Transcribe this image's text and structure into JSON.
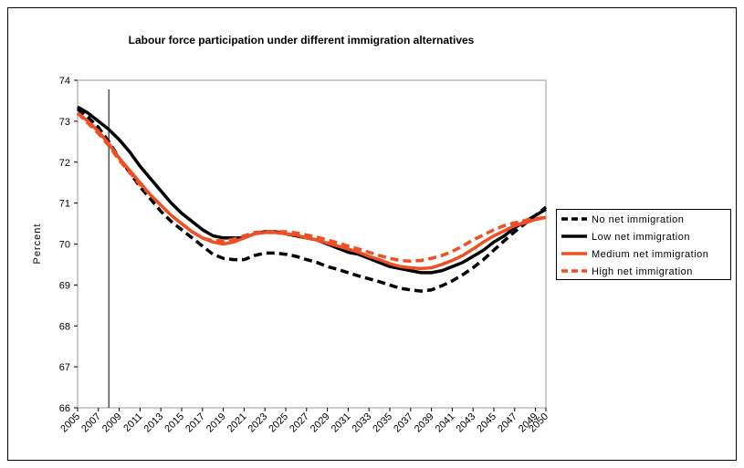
{
  "chart_data": {
    "type": "line",
    "title": "Labour force participation under different immigration alternatives",
    "y_label": "Percent",
    "x": [
      2005,
      2006,
      2007,
      2008,
      2009,
      2010,
      2011,
      2012,
      2013,
      2014,
      2015,
      2016,
      2017,
      2018,
      2019,
      2020,
      2021,
      2022,
      2023,
      2024,
      2025,
      2026,
      2027,
      2028,
      2029,
      2030,
      2031,
      2032,
      2033,
      2034,
      2035,
      2036,
      2037,
      2038,
      2039,
      2040,
      2041,
      2042,
      2043,
      2044,
      2045,
      2046,
      2047,
      2048,
      2049,
      2050
    ],
    "xlim": [
      2005,
      2050
    ],
    "xticks": [
      2005,
      2007,
      2009,
      2011,
      2013,
      2015,
      2017,
      2019,
      2021,
      2023,
      2025,
      2027,
      2029,
      2031,
      2033,
      2035,
      2037,
      2039,
      2041,
      2043,
      2045,
      2047,
      2049,
      2050
    ],
    "ylim": [
      66,
      74
    ],
    "yticks": [
      66,
      67,
      68,
      69,
      70,
      71,
      72,
      73,
      74
    ],
    "vline": 2008,
    "series": [
      {
        "name": "No net immigration",
        "color": "#000000",
        "dash": true,
        "values": [
          73.3,
          73.1,
          72.85,
          72.5,
          72.1,
          71.75,
          71.4,
          71.1,
          70.8,
          70.55,
          70.35,
          70.15,
          69.95,
          69.75,
          69.65,
          69.62,
          69.62,
          69.72,
          69.78,
          69.78,
          69.75,
          69.7,
          69.62,
          69.55,
          69.45,
          69.38,
          69.3,
          69.22,
          69.15,
          69.08,
          69.0,
          68.92,
          68.88,
          68.85,
          68.88,
          68.98,
          69.1,
          69.25,
          69.42,
          69.62,
          69.85,
          70.08,
          70.3,
          70.5,
          70.7,
          70.9
        ]
      },
      {
        "name": "Low net immigration",
        "color": "#000000",
        "dash": false,
        "values": [
          73.35,
          73.2,
          73.0,
          72.8,
          72.55,
          72.25,
          71.9,
          71.6,
          71.3,
          71.0,
          70.75,
          70.55,
          70.35,
          70.2,
          70.15,
          70.15,
          70.15,
          70.25,
          70.3,
          70.3,
          70.25,
          70.2,
          70.15,
          70.1,
          70.0,
          69.9,
          69.8,
          69.75,
          69.65,
          69.55,
          69.45,
          69.4,
          69.35,
          69.3,
          69.3,
          69.35,
          69.45,
          69.55,
          69.7,
          69.85,
          70.05,
          70.2,
          70.4,
          70.55,
          70.7,
          70.85
        ]
      },
      {
        "name": "Medium net immigration",
        "color": "#f04e23",
        "dash": false,
        "values": [
          73.2,
          73.0,
          72.75,
          72.45,
          72.1,
          71.8,
          71.5,
          71.2,
          70.95,
          70.7,
          70.5,
          70.3,
          70.15,
          70.05,
          70.0,
          70.05,
          70.15,
          70.25,
          70.28,
          70.28,
          70.25,
          70.22,
          70.15,
          70.1,
          70.02,
          69.95,
          69.88,
          69.8,
          69.7,
          69.62,
          69.52,
          69.45,
          69.42,
          69.4,
          69.42,
          69.5,
          69.6,
          69.72,
          69.88,
          70.05,
          70.2,
          70.32,
          70.45,
          70.52,
          70.6,
          70.65
        ]
      },
      {
        "name": "High net immigration",
        "color": "#f04e23",
        "dash": true,
        "values": [
          73.2,
          72.95,
          72.7,
          72.4,
          72.05,
          71.75,
          71.45,
          71.2,
          70.95,
          70.7,
          70.5,
          70.3,
          70.15,
          70.08,
          70.08,
          70.12,
          70.2,
          70.28,
          70.3,
          70.3,
          70.3,
          70.27,
          70.22,
          70.17,
          70.1,
          70.03,
          69.95,
          69.88,
          69.8,
          69.72,
          69.65,
          69.6,
          69.58,
          69.6,
          69.65,
          69.72,
          69.82,
          69.95,
          70.1,
          70.22,
          70.35,
          70.45,
          70.52,
          70.58,
          70.62,
          70.65
        ]
      }
    ]
  }
}
